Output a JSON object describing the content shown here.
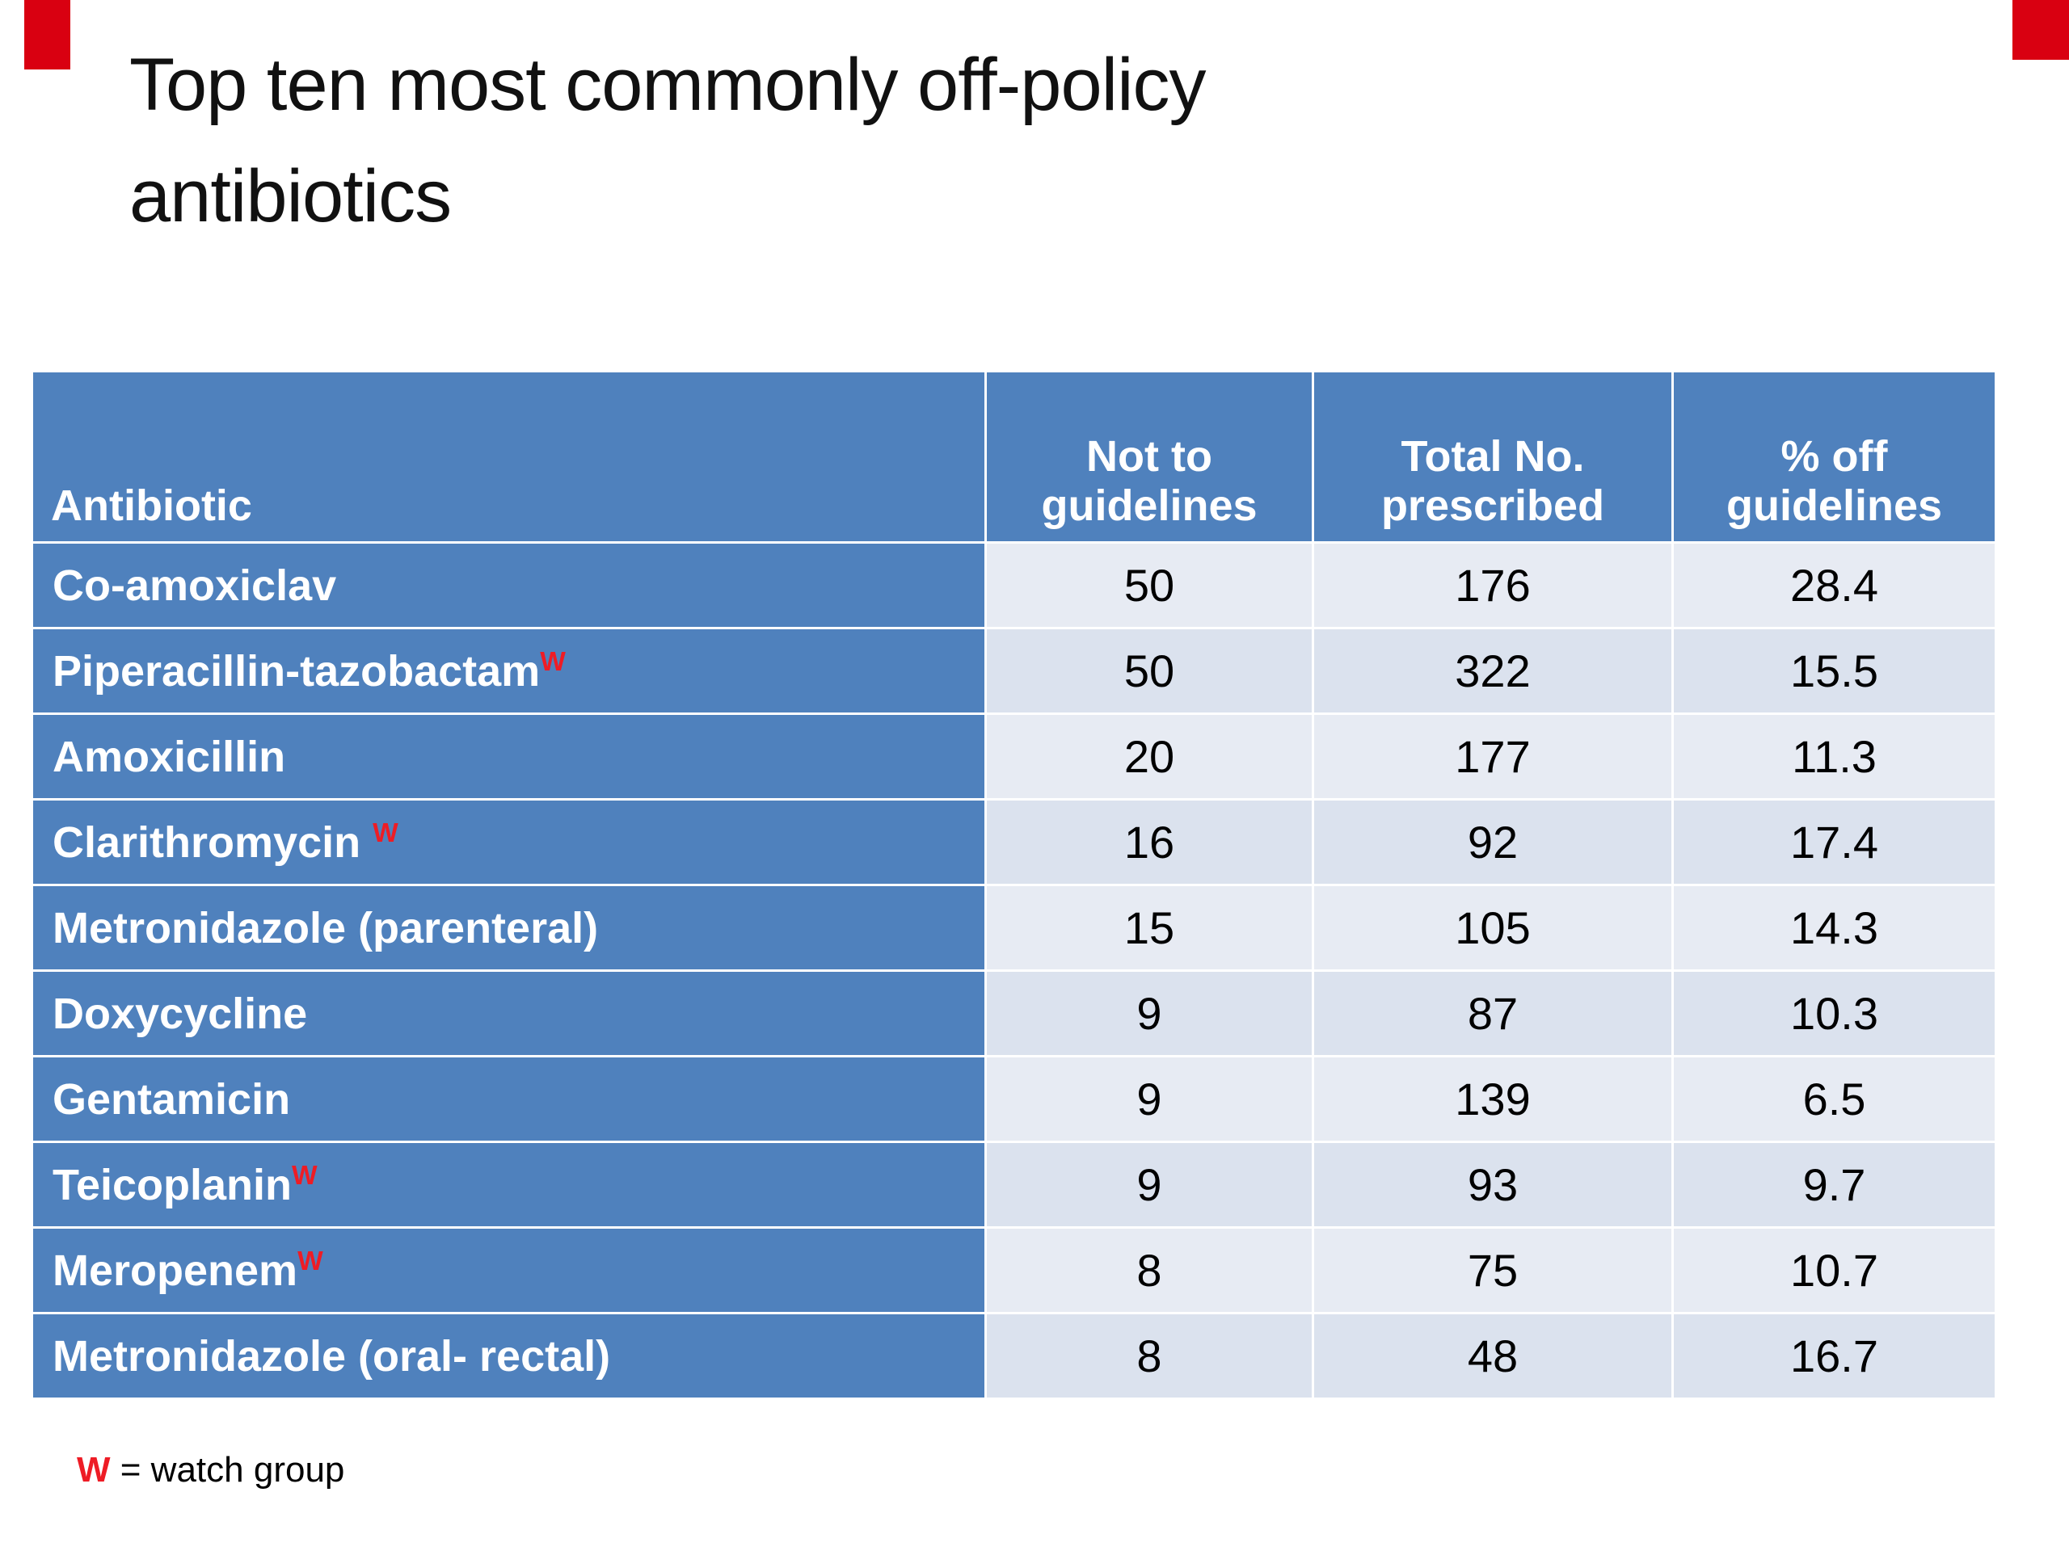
{
  "slide": {
    "title": "Top ten most commonly off-policy antibiotics"
  },
  "colors": {
    "header_blue": "#4f81bd",
    "band_light": "#e7ebf3",
    "band_dark": "#dbe2ee",
    "corner_accent_red": "#d90011",
    "watch_red": "#ee1c25"
  },
  "chart_data": {
    "type": "table",
    "title": "Top ten most commonly off-policy antibiotics",
    "columns": [
      "Antibiotic",
      "Not to guidelines",
      "Total No. prescribed",
      "% off guidelines"
    ],
    "rows": [
      {
        "name": "Co-amoxiclav",
        "watch": "",
        "not_to_guidelines": "50",
        "total_prescribed": "176",
        "pct_off_guidelines": "28.4"
      },
      {
        "name": "Piperacillin-tazobactam",
        "watch": "W",
        "not_to_guidelines": "50",
        "total_prescribed": "322",
        "pct_off_guidelines": "15.5"
      },
      {
        "name": "Amoxicillin",
        "watch": "",
        "not_to_guidelines": "20",
        "total_prescribed": "177",
        "pct_off_guidelines": "11.3"
      },
      {
        "name": "Clarithromycin ",
        "watch": "W",
        "not_to_guidelines": "16",
        "total_prescribed": "92",
        "pct_off_guidelines": "17.4"
      },
      {
        "name": "Metronidazole (parenteral)",
        "watch": "",
        "not_to_guidelines": "15",
        "total_prescribed": "105",
        "pct_off_guidelines": "14.3"
      },
      {
        "name": "Doxycycline",
        "watch": "",
        "not_to_guidelines": "9",
        "total_prescribed": "87",
        "pct_off_guidelines": "10.3"
      },
      {
        "name": "Gentamicin",
        "watch": "",
        "not_to_guidelines": "9",
        "total_prescribed": "139",
        "pct_off_guidelines": "6.5"
      },
      {
        "name": "Teicoplanin",
        "watch": "W",
        "not_to_guidelines": "9",
        "total_prescribed": "93",
        "pct_off_guidelines": "9.7"
      },
      {
        "name": "Meropenem",
        "watch": "W",
        "not_to_guidelines": "8",
        "total_prescribed": "75",
        "pct_off_guidelines": "10.7"
      },
      {
        "name": "Metronidazole (oral- rectal)",
        "watch": "",
        "not_to_guidelines": "8",
        "total_prescribed": "48",
        "pct_off_guidelines": "16.7"
      }
    ]
  },
  "footnote": {
    "marker": "W",
    "text": "= watch group"
  }
}
